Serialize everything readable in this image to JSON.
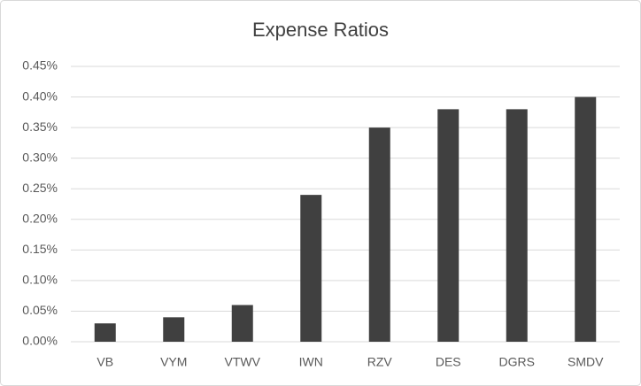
{
  "chart_data": {
    "type": "bar",
    "title": "Expense Ratios",
    "categories": [
      "VB",
      "VYM",
      "VTWV",
      "IWN",
      "RZV",
      "DES",
      "DGRS",
      "SMDV"
    ],
    "values": [
      0.03,
      0.04,
      0.06,
      0.24,
      0.35,
      0.38,
      0.38,
      0.4
    ],
    "color": "#404040",
    "ylim": [
      0,
      0.45
    ],
    "yticks": [
      {
        "value": 0,
        "label": "0.00%"
      },
      {
        "value": 0.05,
        "label": "0.05%"
      },
      {
        "value": 0.1,
        "label": "0.10%"
      },
      {
        "value": 0.15,
        "label": "0.15%"
      },
      {
        "value": 0.2,
        "label": "0.20%"
      },
      {
        "value": 0.25,
        "label": "0.25%"
      },
      {
        "value": 0.3,
        "label": "0.30%"
      },
      {
        "value": 0.35,
        "label": "0.35%"
      },
      {
        "value": 0.4,
        "label": "0.40%"
      },
      {
        "value": 0.45,
        "label": "0.45%"
      }
    ],
    "grid": true
  }
}
